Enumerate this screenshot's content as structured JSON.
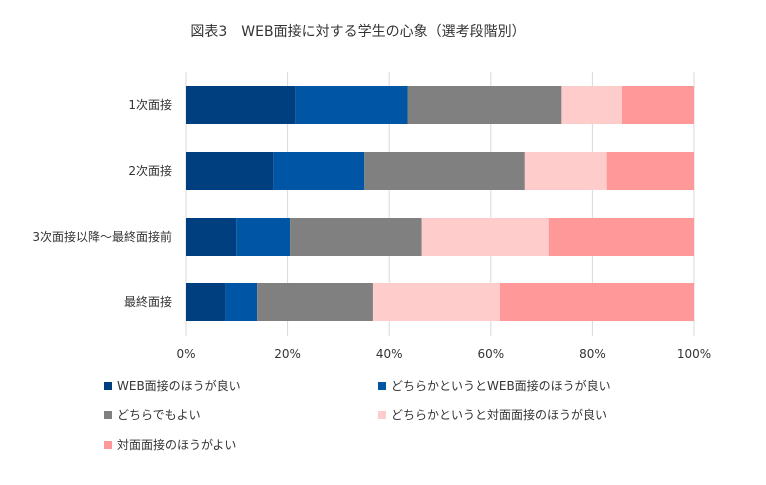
{
  "chart_data": {
    "type": "bar",
    "orientation": "horizontal",
    "stacked": "percent",
    "title": "図表3　WEB面接に対する学生の心象（選考段階別）",
    "categories": [
      "1次面接",
      "2次面接",
      "3次面接以降～最終面接前",
      "最終面接"
    ],
    "series": [
      {
        "name": "WEB面接のほうが良い",
        "color": "#003F7F",
        "values": [
          21.6,
          17.2,
          9.9,
          7.8
        ]
      },
      {
        "name": "どちらかというとWEB面接のほうが良い",
        "color": "#0055A5",
        "values": [
          22.0,
          17.9,
          10.6,
          6.2
        ]
      },
      {
        "name": "どちらでもよい",
        "color": "#808080",
        "values": [
          30.3,
          31.6,
          25.9,
          22.8
        ]
      },
      {
        "name": "どちらかというと対面面接のほうが良い",
        "color": "#FFCCCC",
        "values": [
          11.9,
          16.1,
          25.0,
          25.0
        ]
      },
      {
        "name": "対面面接のほうがよい",
        "color": "#FF9999",
        "values": [
          14.2,
          17.2,
          28.6,
          38.2
        ]
      }
    ],
    "xlim": [
      0,
      100
    ],
    "xticks": [
      "0%",
      "20%",
      "40%",
      "60%",
      "80%",
      "100%"
    ],
    "grid": true,
    "legend_position": "bottom"
  }
}
